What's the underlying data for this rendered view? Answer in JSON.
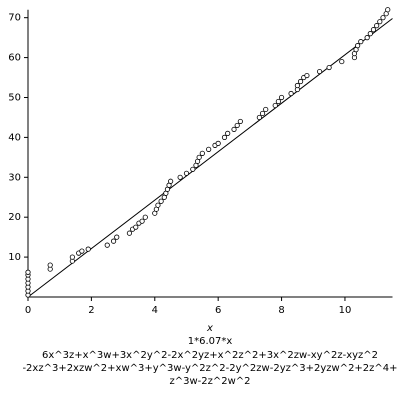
{
  "chart_data": {
    "type": "scatter",
    "x": [
      0,
      0,
      0,
      0,
      0,
      0,
      0,
      0.7,
      0.7,
      1.4,
      1.4,
      1.6,
      1.7,
      1.9,
      2.5,
      2.7,
      2.8,
      3.2,
      3.3,
      3.4,
      3.5,
      3.6,
      3.7,
      4.0,
      4.05,
      4.1,
      4.2,
      4.3,
      4.35,
      4.4,
      4.45,
      4.5,
      4.8,
      5.0,
      5.2,
      5.3,
      5.35,
      5.4,
      5.5,
      5.7,
      5.9,
      6.0,
      6.2,
      6.3,
      6.5,
      6.6,
      6.7,
      7.3,
      7.4,
      7.5,
      7.8,
      7.9,
      8.0,
      8.3,
      8.5,
      8.5,
      8.6,
      8.7,
      8.8,
      9.2,
      9.5,
      9.9,
      10.3,
      10.3,
      10.35,
      10.4,
      10.5,
      10.7,
      10.8,
      10.9,
      11.0,
      11.1,
      11.2,
      11.3,
      11.35
    ],
    "values": [
      0.5,
      1.5,
      2.5,
      3.5,
      4.5,
      5.5,
      6.2,
      7,
      8,
      9,
      10,
      11,
      11.5,
      12,
      13,
      14,
      15,
      16,
      17,
      17.5,
      18.5,
      19,
      20,
      21,
      22,
      23,
      24,
      25,
      26,
      27,
      28,
      29,
      30,
      31,
      32,
      33,
      34,
      35,
      36,
      37,
      38,
      38.5,
      40,
      41,
      42,
      43,
      44,
      45,
      46,
      47,
      48,
      49,
      50,
      51,
      52,
      53,
      54,
      55,
      55.5,
      56.5,
      57.5,
      59,
      60,
      61,
      62,
      63,
      64,
      65,
      66,
      67,
      68,
      69,
      70,
      71,
      72
    ],
    "color": "#000000",
    "line": {
      "label": "1*6.07*x",
      "x": [
        0,
        11.5
      ],
      "values": [
        0,
        69.8
      ],
      "color": "#000000"
    },
    "x_label": "x",
    "caption": [
      "6x^3z+x^3w+3x^2y^2-2x^2yz+x^2z^2+3x^2zw-xy^2z-xyz^2",
      "-2xz^3+2xzw^2+xw^3+y^3w-y^2z^2-2y^2zw-2yz^3+2yzw^2+2z^4+",
      "z^3w-2z^2w^2"
    ],
    "xlim": [
      0,
      11.5
    ],
    "ylim": [
      0,
      72
    ],
    "xticks": [
      0,
      2,
      4,
      6,
      8,
      10
    ],
    "yticks": [
      10,
      20,
      30,
      40,
      50,
      60,
      70
    ]
  }
}
